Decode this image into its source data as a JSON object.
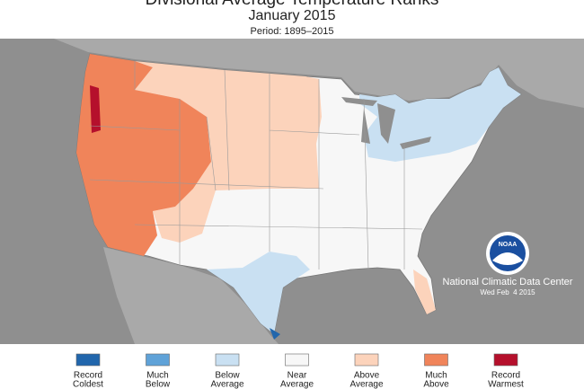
{
  "header": {
    "title": "Divisional Average Temperature Ranks",
    "subtitle": "January 2015",
    "period": "Period: 1895–2015"
  },
  "credit": {
    "logo": "NOAA",
    "agency": "National Climatic Data Center",
    "date": "Wed Feb  4 2015"
  },
  "legend": [
    {
      "lines": [
        "Record",
        "Coldest"
      ],
      "color": "#2166ac"
    },
    {
      "lines": [
        "Much",
        "Below"
      ],
      "color": "#5fa2d8"
    },
    {
      "lines": [
        "Below",
        "Average"
      ],
      "color": "#c9e0f2"
    },
    {
      "lines": [
        "Near",
        "Average"
      ],
      "color": "#f7f7f7"
    },
    {
      "lines": [
        "Above",
        "Average"
      ],
      "color": "#fcd3bb"
    },
    {
      "lines": [
        "Much",
        "Above"
      ],
      "color": "#f0845a"
    },
    {
      "lines": [
        "Record",
        "Warmest"
      ],
      "color": "#b5102c"
    }
  ]
}
